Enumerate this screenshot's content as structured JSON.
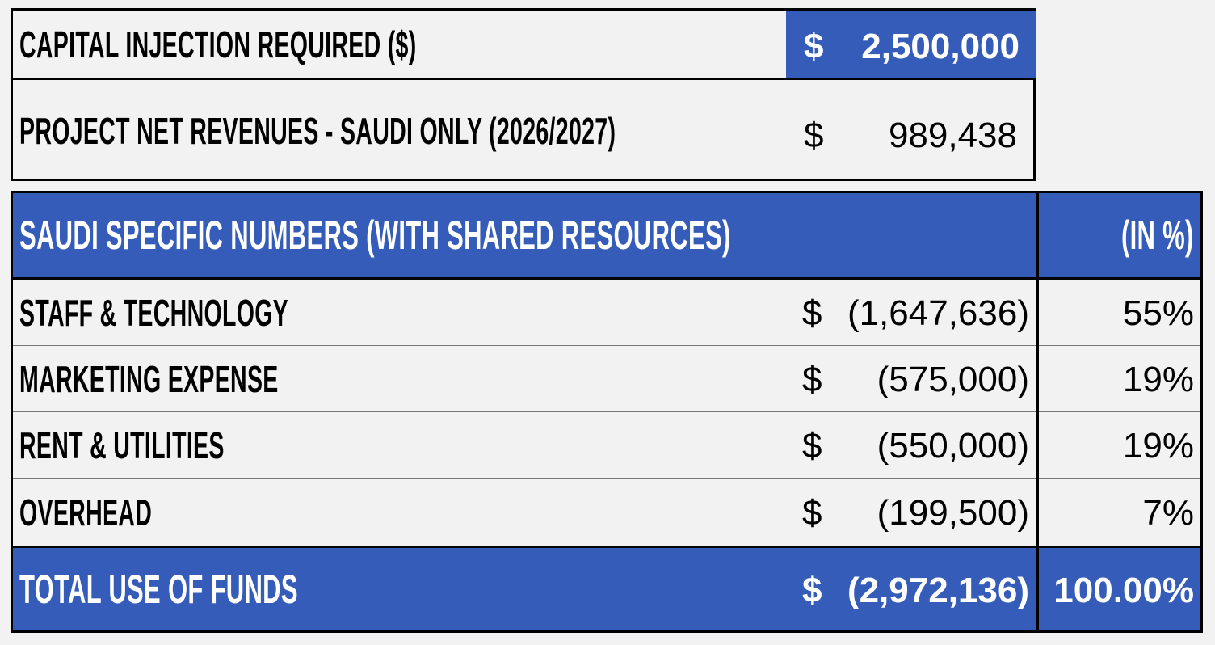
{
  "summary": {
    "capital_label": "CAPITAL INJECTION REQUIRED ($)",
    "capital_currency": "$",
    "capital_value": "2,500,000",
    "revenue_label": "PROJECT NET REVENUES - SAUDI ONLY (2026/2027)",
    "revenue_currency": "$",
    "revenue_value": "989,438"
  },
  "table": {
    "header_label": "SAUDI SPECIFIC NUMBERS (WITH SHARED RESOURCES)",
    "header_pct": "(IN %)",
    "rows": [
      {
        "label": "STAFF & TECHNOLOGY",
        "currency": "$",
        "amount": "(1,647,636)",
        "pct": "55%"
      },
      {
        "label": "MARKETING EXPENSE",
        "currency": "$",
        "amount": "(575,000)",
        "pct": "19%"
      },
      {
        "label": "RENT & UTILITIES",
        "currency": "$",
        "amount": "(550,000)",
        "pct": "19%"
      },
      {
        "label": "OVERHEAD",
        "currency": "$",
        "amount": "(199,500)",
        "pct": "7%"
      }
    ],
    "total": {
      "label": "TOTAL USE OF FUNDS",
      "currency": "$",
      "amount": "(2,972,136)",
      "pct": "100.00%"
    }
  },
  "colors": {
    "accent_blue": "#355cb8",
    "background": "#f2f2f2"
  }
}
